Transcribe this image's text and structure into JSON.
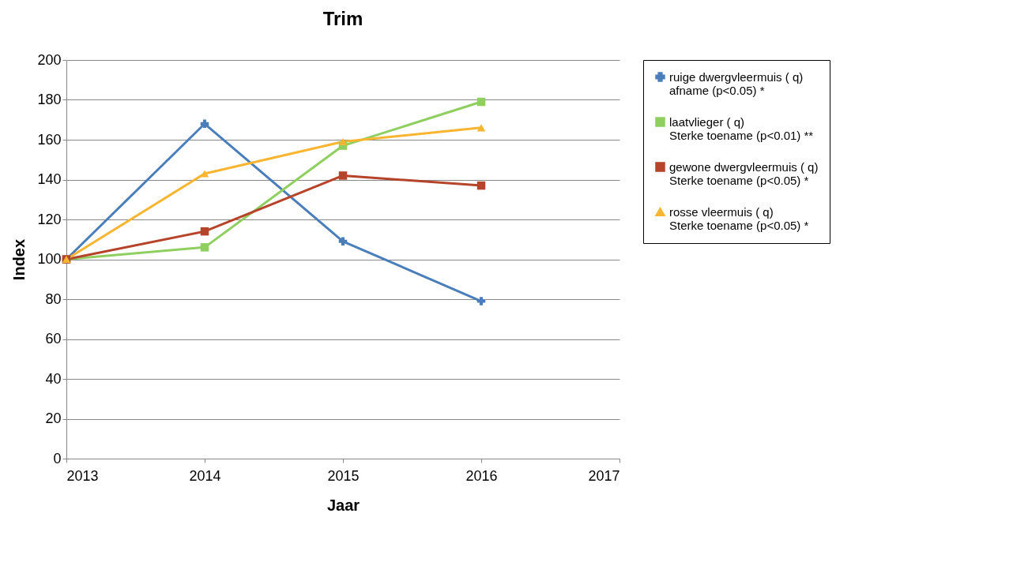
{
  "chart_data": {
    "type": "line",
    "title": "Trim",
    "xlabel": "Jaar",
    "ylabel": "Index",
    "x": [
      2013,
      2014,
      2015,
      2016
    ],
    "series": [
      {
        "name": "ruige dwergvleermuis ( q)\nafname (p<0.05) *",
        "color": "#4a7ebb",
        "marker": "cross",
        "values": [
          100,
          168,
          109,
          79
        ]
      },
      {
        "name": "laatvlieger  ( q)\nSterke toename (p<0.01) **",
        "color": "#8fcf5f",
        "marker": "square",
        "values": [
          100,
          106,
          157,
          179
        ]
      },
      {
        "name": "gewone dwergvleermuis ( q)\nSterke toename (p<0.05) *",
        "color": "#b5442a",
        "marker": "square",
        "values": [
          100,
          114,
          142,
          137
        ]
      },
      {
        "name": "rosse vleermuis  ( q)\nSterke toename (p<0.05) *",
        "color": "#f9b530",
        "marker": "triangle",
        "values": [
          100,
          143,
          159,
          166
        ]
      }
    ],
    "xlim": [
      2013,
      2017
    ],
    "xticks": [
      2013,
      2014,
      2015,
      2016,
      2017
    ],
    "ylim": [
      0,
      200
    ],
    "yticks": [
      0,
      20,
      40,
      60,
      80,
      100,
      120,
      140,
      160,
      180,
      200
    ],
    "grid": "y",
    "legend": "top right",
    "line_style": "solid"
  }
}
